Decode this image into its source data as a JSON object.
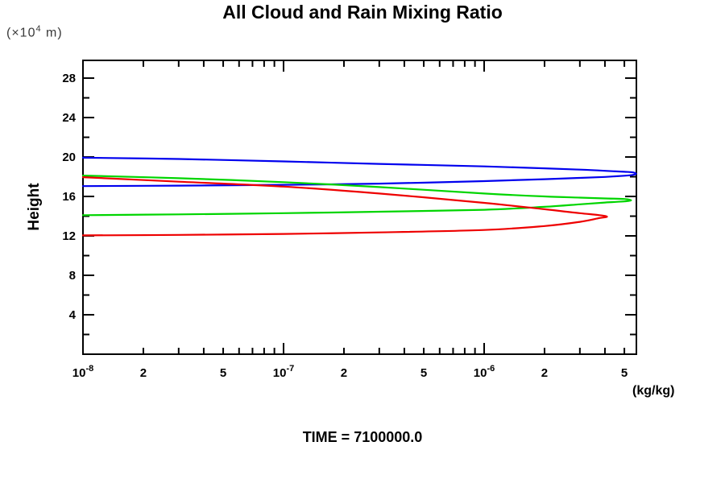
{
  "title": "All Cloud and Rain Mixing Ratio",
  "y_unit": {
    "pre": "(×10",
    "sup": "4",
    "post": " m)"
  },
  "y_axis_label": "Height",
  "x_unit": "(kg/kg)",
  "time_label": "TIME = 7100000.0",
  "frame_color": "#000000",
  "chart_data": {
    "type": "line",
    "title": "All Cloud and Rain Mixing Ratio",
    "xlabel": "(kg/kg)",
    "ylabel": "Height (×10^4 m)",
    "x_scale": "log",
    "xlim": [
      1e-08,
      5.74e-06
    ],
    "ylim": [
      0,
      29.8
    ],
    "grid": false,
    "legend": "none",
    "annotation": "TIME = 7100000.0",
    "y_major_ticks": [
      4,
      8,
      12,
      16,
      20,
      24,
      28
    ],
    "y_minor_ticks": [
      2,
      6,
      10,
      14,
      18,
      22,
      26
    ],
    "x_major_ticks": [
      1e-08,
      1e-07,
      1e-06
    ],
    "x_minor_ticks": [
      2e-08,
      3e-08,
      4e-08,
      5e-08,
      6e-08,
      7e-08,
      8e-08,
      9e-08,
      2e-07,
      3e-07,
      4e-07,
      5e-07,
      6e-07,
      7e-07,
      8e-07,
      9e-07,
      2e-06,
      3e-06,
      4e-06,
      5e-06
    ],
    "x_tick_labels": [
      {
        "v": 1e-08,
        "label": "10",
        "sup": "-8"
      },
      {
        "v": 2e-08,
        "label": "2"
      },
      {
        "v": 5e-08,
        "label": "5"
      },
      {
        "v": 1e-07,
        "label": "10",
        "sup": "-7"
      },
      {
        "v": 2e-07,
        "label": "2"
      },
      {
        "v": 5e-07,
        "label": "5"
      },
      {
        "v": 1e-06,
        "label": "10",
        "sup": "-6"
      },
      {
        "v": 2e-06,
        "label": "2"
      },
      {
        "v": 5e-06,
        "label": "5"
      }
    ],
    "series": [
      {
        "name": "blue-curve",
        "color": "#0000EE",
        "points": [
          [
            1e-08,
            19.93
          ],
          [
            3e-08,
            19.8
          ],
          [
            1e-07,
            19.55
          ],
          [
            3e-07,
            19.3
          ],
          [
            1e-06,
            19.05
          ],
          [
            2e-06,
            18.85
          ],
          [
            3e-06,
            18.72
          ],
          [
            4e-06,
            18.6
          ],
          [
            5e-06,
            18.5
          ],
          [
            5.5e-06,
            18.44
          ],
          [
            5.72e-06,
            18.3
          ],
          [
            5.5e-06,
            18.18
          ],
          [
            5e-06,
            18.1
          ],
          [
            4e-06,
            17.98
          ],
          [
            3e-06,
            17.88
          ],
          [
            2e-06,
            17.75
          ],
          [
            1e-06,
            17.55
          ],
          [
            3e-07,
            17.3
          ],
          [
            1e-07,
            17.18
          ],
          [
            3e-08,
            17.1
          ],
          [
            1e-08,
            17.05
          ]
        ]
      },
      {
        "name": "green-curve",
        "color": "#00D500",
        "points": [
          [
            1e-08,
            18.12
          ],
          [
            3e-08,
            17.85
          ],
          [
            1e-07,
            17.45
          ],
          [
            3e-07,
            16.95
          ],
          [
            1e-06,
            16.3
          ],
          [
            2e-06,
            16.0
          ],
          [
            3e-06,
            15.88
          ],
          [
            4e-06,
            15.8
          ],
          [
            5e-06,
            15.74
          ],
          [
            5.4e-06,
            15.62
          ],
          [
            5e-06,
            15.5
          ],
          [
            4e-06,
            15.38
          ],
          [
            3e-06,
            15.2
          ],
          [
            2e-06,
            14.95
          ],
          [
            1e-06,
            14.65
          ],
          [
            3e-07,
            14.45
          ],
          [
            1e-07,
            14.3
          ],
          [
            3e-08,
            14.18
          ],
          [
            1e-08,
            14.1
          ]
        ]
      },
      {
        "name": "red-curve",
        "color": "#EE0000",
        "points": [
          [
            1e-08,
            17.95
          ],
          [
            3e-08,
            17.5
          ],
          [
            1e-07,
            17.0
          ],
          [
            3e-07,
            16.3
          ],
          [
            1e-06,
            15.35
          ],
          [
            2e-06,
            14.7
          ],
          [
            3e-06,
            14.3
          ],
          [
            3.7e-06,
            14.12
          ],
          [
            4.1e-06,
            13.95
          ],
          [
            3.7e-06,
            13.78
          ],
          [
            3e-06,
            13.42
          ],
          [
            2e-06,
            13.0
          ],
          [
            1e-06,
            12.6
          ],
          [
            3e-07,
            12.35
          ],
          [
            1e-07,
            12.2
          ],
          [
            3e-08,
            12.1
          ],
          [
            1e-08,
            12.05
          ]
        ]
      }
    ]
  }
}
